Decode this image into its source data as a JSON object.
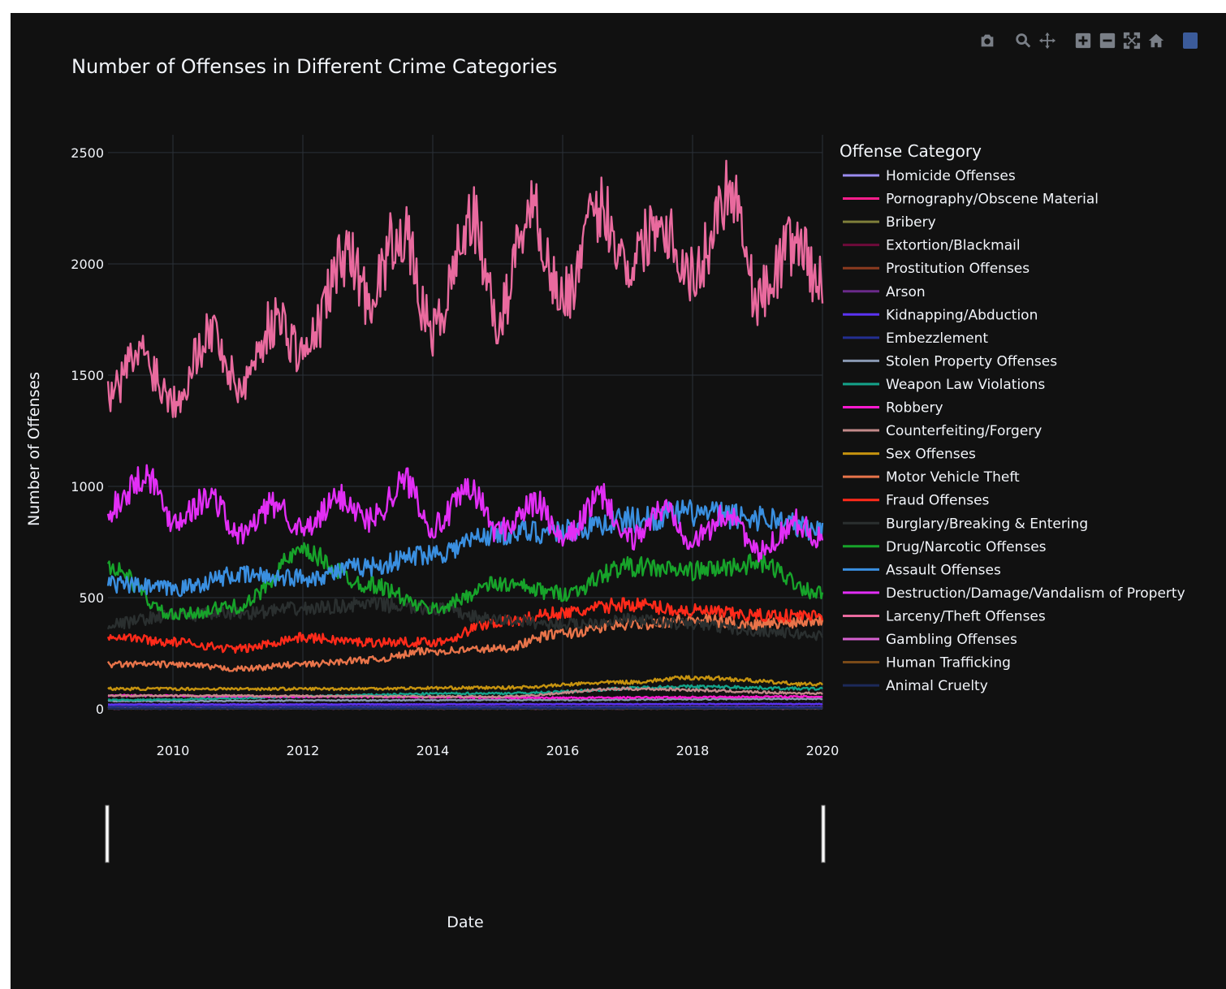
{
  "modebar": {
    "buttons": [
      "camera-icon",
      "zoom-icon",
      "pan-icon",
      "zoom-in-icon",
      "zoom-out-icon",
      "autoscale-icon",
      "home-icon",
      "plotly-logo-icon"
    ]
  },
  "colors": {
    "background": "#111111",
    "grid": "#2b3139",
    "text": "#f2f5fa",
    "zeroline": "#3a414b"
  },
  "chart_data": {
    "type": "line",
    "title": "Number of Offenses in Different Crime Categories",
    "xlabel": "Date",
    "ylabel": "Number of Offenses",
    "legend_title": "Offense Category",
    "legend_placement": "right",
    "grid": true,
    "xlim": [
      "2009-01-01",
      "2020-01-01"
    ],
    "ylim": [
      0,
      2580
    ],
    "x_ticks": [
      "2010",
      "2012",
      "2014",
      "2016",
      "2018",
      "2020"
    ],
    "y_ticks": [
      0,
      500,
      1000,
      1500,
      2000,
      2500
    ],
    "rangeslider": true,
    "frequency": "weekly",
    "series": [
      {
        "name": "Homicide Offenses",
        "color": "#9b8cf0",
        "anchors": [
          [
            2009.0,
            5
          ],
          [
            2020.0,
            6
          ]
        ]
      },
      {
        "name": "Pornography/Obscene Material",
        "color": "#ff1e8c",
        "anchors": [
          [
            2009.0,
            6
          ],
          [
            2020.0,
            8
          ]
        ]
      },
      {
        "name": "Bribery",
        "color": "#7f7f3a",
        "anchors": [
          [
            2009.0,
            2
          ],
          [
            2020.0,
            2
          ]
        ]
      },
      {
        "name": "Extortion/Blackmail",
        "color": "#6e0a3a",
        "anchors": [
          [
            2009.0,
            2
          ],
          [
            2020.0,
            5
          ]
        ]
      },
      {
        "name": "Prostitution Offenses",
        "color": "#8b3a1f",
        "anchors": [
          [
            2009.0,
            8
          ],
          [
            2020.0,
            5
          ]
        ]
      },
      {
        "name": "Arson",
        "color": "#6a2a8a",
        "anchors": [
          [
            2009.0,
            12
          ],
          [
            2020.0,
            10
          ]
        ]
      },
      {
        "name": "Kidnapping/Abduction",
        "color": "#5b33f2",
        "anchors": [
          [
            2009.0,
            20
          ],
          [
            2020.0,
            22
          ]
        ]
      },
      {
        "name": "Embezzlement",
        "color": "#232f92",
        "anchors": [
          [
            2009.0,
            10
          ],
          [
            2020.0,
            8
          ]
        ]
      },
      {
        "name": "Stolen Property Offenses",
        "color": "#8a99b3",
        "anchors": [
          [
            2009.0,
            35
          ],
          [
            2015.0,
            40
          ],
          [
            2020.0,
            45
          ]
        ]
      },
      {
        "name": "Weapon Law Violations",
        "color": "#14a38a",
        "anchors": [
          [
            2009.0,
            40
          ],
          [
            2015.0,
            70
          ],
          [
            2018.0,
            100
          ],
          [
            2020.0,
            90
          ]
        ]
      },
      {
        "name": "Robbery",
        "color": "#ff1ad1",
        "anchors": [
          [
            2009.0,
            60
          ],
          [
            2012.0,
            55
          ],
          [
            2016.0,
            50
          ],
          [
            2020.0,
            55
          ]
        ]
      },
      {
        "name": "Counterfeiting/Forgery",
        "color": "#c38a8a",
        "anchors": [
          [
            2009.0,
            60
          ],
          [
            2015.0,
            55
          ],
          [
            2017.0,
            90
          ],
          [
            2020.0,
            70
          ]
        ]
      },
      {
        "name": "Sex Offenses",
        "color": "#c6930f",
        "anchors": [
          [
            2009.0,
            90
          ],
          [
            2012.0,
            90
          ],
          [
            2015.0,
            95
          ],
          [
            2017.0,
            120
          ],
          [
            2018.0,
            140
          ],
          [
            2020.0,
            110
          ]
        ]
      },
      {
        "name": "Motor Vehicle Theft",
        "color": "#e8744a",
        "anchors": [
          [
            2009.0,
            200
          ],
          [
            2010.0,
            200
          ],
          [
            2011.0,
            180
          ],
          [
            2012.0,
            200
          ],
          [
            2013.0,
            220
          ],
          [
            2014.0,
            260
          ],
          [
            2015.0,
            270
          ],
          [
            2016.0,
            340
          ],
          [
            2017.0,
            380
          ],
          [
            2018.0,
            400
          ],
          [
            2019.0,
            380
          ],
          [
            2020.0,
            400
          ]
        ]
      },
      {
        "name": "Fraud Offenses",
        "color": "#ff2a1a",
        "anchors": [
          [
            2009.0,
            330
          ],
          [
            2010.0,
            300
          ],
          [
            2011.0,
            270
          ],
          [
            2012.0,
            320
          ],
          [
            2013.0,
            300
          ],
          [
            2014.0,
            300
          ],
          [
            2015.0,
            390
          ],
          [
            2016.0,
            430
          ],
          [
            2017.0,
            470
          ],
          [
            2018.0,
            440
          ],
          [
            2019.0,
            420
          ],
          [
            2020.0,
            420
          ]
        ]
      },
      {
        "name": "Burglary/Breaking & Entering",
        "color": "#2a2f2f",
        "anchors": [
          [
            2009.0,
            380
          ],
          [
            2010.0,
            420
          ],
          [
            2011.0,
            430
          ],
          [
            2012.0,
            450
          ],
          [
            2013.0,
            470
          ],
          [
            2014.0,
            450
          ],
          [
            2015.0,
            400
          ],
          [
            2016.0,
            380
          ],
          [
            2017.0,
            400
          ],
          [
            2018.0,
            380
          ],
          [
            2019.0,
            350
          ],
          [
            2020.0,
            330
          ]
        ]
      },
      {
        "name": "Drug/Narcotic Offenses",
        "color": "#17a32a",
        "anchors": [
          [
            2009.0,
            640
          ],
          [
            2010.0,
            420
          ],
          [
            2011.0,
            460
          ],
          [
            2012.0,
            700
          ],
          [
            2013.0,
            560
          ],
          [
            2014.0,
            450
          ],
          [
            2015.0,
            560
          ],
          [
            2016.0,
            520
          ],
          [
            2017.0,
            640
          ],
          [
            2018.0,
            620
          ],
          [
            2019.0,
            650
          ],
          [
            2020.0,
            520
          ]
        ]
      },
      {
        "name": "Assault Offenses",
        "color": "#3a8fe0",
        "anchors": [
          [
            2009.0,
            560
          ],
          [
            2010.0,
            540
          ],
          [
            2011.0,
            600
          ],
          [
            2012.0,
            590
          ],
          [
            2013.0,
            640
          ],
          [
            2014.0,
            700
          ],
          [
            2015.0,
            790
          ],
          [
            2016.0,
            800
          ],
          [
            2017.0,
            850
          ],
          [
            2018.0,
            880
          ],
          [
            2019.0,
            860
          ],
          [
            2020.0,
            800
          ]
        ]
      },
      {
        "name": "Destruction/Damage/Vandalism of Property",
        "color": "#e22ef5",
        "anchors": [
          [
            2009.0,
            900
          ],
          [
            2009.6,
            1050
          ],
          [
            2010.0,
            850
          ],
          [
            2010.6,
            950
          ],
          [
            2011.0,
            780
          ],
          [
            2011.6,
            920
          ],
          [
            2012.0,
            800
          ],
          [
            2012.6,
            950
          ],
          [
            2013.0,
            850
          ],
          [
            2013.6,
            1020
          ],
          [
            2014.0,
            820
          ],
          [
            2014.6,
            980
          ],
          [
            2015.0,
            800
          ],
          [
            2015.6,
            920
          ],
          [
            2016.0,
            760
          ],
          [
            2016.6,
            950
          ],
          [
            2017.0,
            760
          ],
          [
            2017.6,
            900
          ],
          [
            2018.0,
            760
          ],
          [
            2018.6,
            880
          ],
          [
            2019.0,
            700
          ],
          [
            2019.6,
            840
          ],
          [
            2020.0,
            760
          ]
        ]
      },
      {
        "name": "Larceny/Theft Offenses",
        "color": "#e96a9e",
        "anchors": [
          [
            2009.0,
            1400
          ],
          [
            2009.5,
            1600
          ],
          [
            2010.0,
            1400
          ],
          [
            2010.6,
            1700
          ],
          [
            2011.0,
            1450
          ],
          [
            2011.6,
            1750
          ],
          [
            2012.0,
            1600
          ],
          [
            2012.7,
            2050
          ],
          [
            2013.0,
            1850
          ],
          [
            2013.5,
            2150
          ],
          [
            2014.0,
            1700
          ],
          [
            2014.6,
            2200
          ],
          [
            2015.0,
            1750
          ],
          [
            2015.5,
            2250
          ],
          [
            2016.0,
            1850
          ],
          [
            2016.6,
            2250
          ],
          [
            2017.0,
            2000
          ],
          [
            2017.5,
            2200
          ],
          [
            2018.0,
            1950
          ],
          [
            2018.6,
            2350
          ],
          [
            2019.0,
            1850
          ],
          [
            2019.6,
            2100
          ],
          [
            2020.0,
            1900
          ]
        ]
      },
      {
        "name": "Gambling Offenses",
        "color": "#d660d0",
        "anchors": [
          [
            2009.0,
            1
          ],
          [
            2020.0,
            1
          ]
        ]
      },
      {
        "name": "Human Trafficking",
        "color": "#7a4a18",
        "anchors": [
          [
            2009.0,
            1
          ],
          [
            2020.0,
            1
          ]
        ]
      },
      {
        "name": "Animal Cruelty",
        "color": "#1c2a5a",
        "anchors": [
          [
            2009.0,
            1
          ],
          [
            2020.0,
            2
          ]
        ]
      }
    ]
  }
}
